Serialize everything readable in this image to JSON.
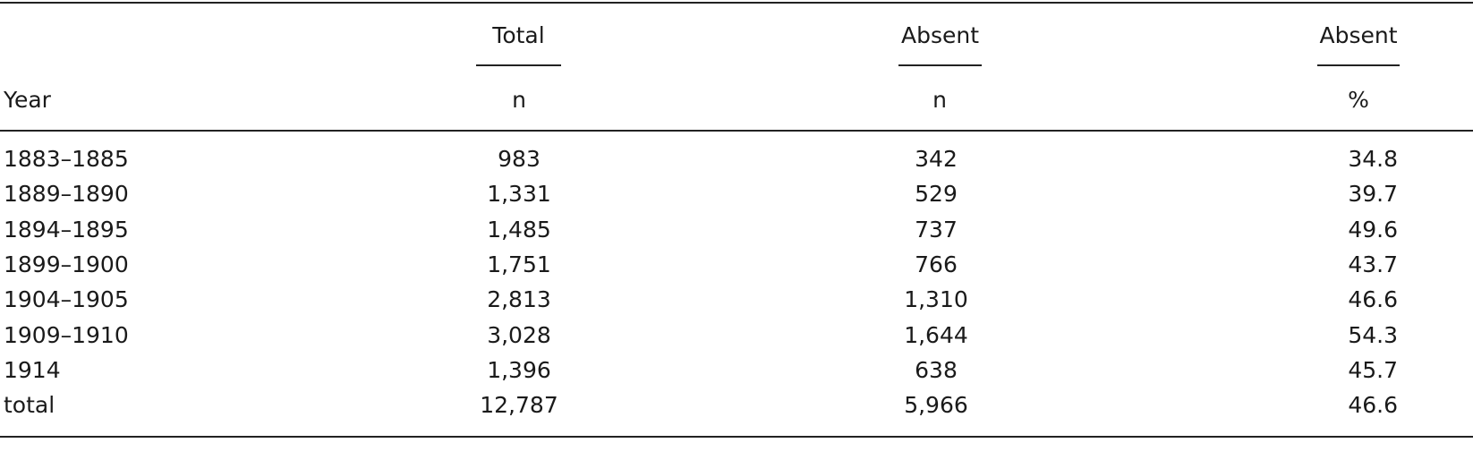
{
  "table": {
    "header": {
      "groups": [
        "Total",
        "Absent",
        "Absent"
      ],
      "columns": [
        "Year",
        "n",
        "n",
        "%"
      ]
    },
    "rows": [
      [
        "1883–1885",
        "983",
        "342",
        "34.8"
      ],
      [
        "1889–1890",
        "1,331",
        "529",
        "39.7"
      ],
      [
        "1894–1895",
        "1,485",
        "737",
        "49.6"
      ],
      [
        "1899–1900",
        "1,751",
        "766",
        "43.7"
      ],
      [
        "1904–1905",
        "2,813",
        "1,310",
        "46.6"
      ],
      [
        "1909–1910",
        "3,028",
        "1,644",
        "54.3"
      ],
      [
        "1914",
        "1,396",
        "638",
        "45.7"
      ],
      [
        "total",
        "12,787",
        "5,966",
        "46.6"
      ]
    ]
  }
}
